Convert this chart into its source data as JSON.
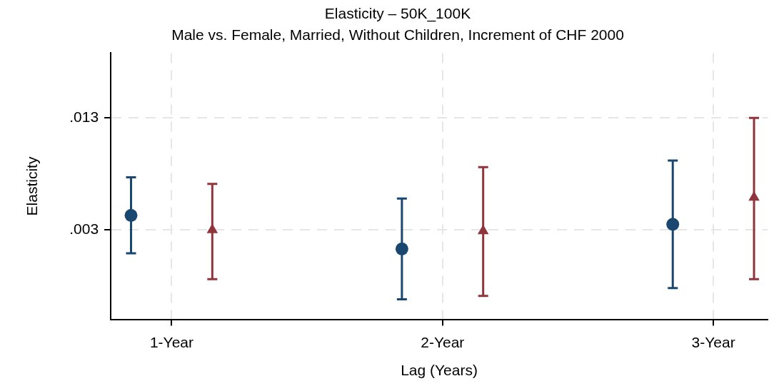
{
  "chart_data": {
    "type": "scatter",
    "title": "Elasticity – 50K_100K",
    "subtitle": "Male vs. Female, Married, Without Children, Increment of CHF 2000",
    "xlabel": "Lag (Years)",
    "ylabel": "Elasticity",
    "series": [
      {
        "color": "#1a476f",
        "marker": "circle",
        "x": [
          0.85,
          1.85,
          2.85
        ],
        "values": [
          0.0043,
          0.0013,
          0.0035
        ],
        "errors": [
          [
            0.0009,
            0.0077
          ],
          [
            -0.0032,
            0.0058
          ],
          [
            -0.0022,
            0.0092
          ]
        ]
      },
      {
        "color": "#90353b",
        "marker": "triangle",
        "x": [
          1.15,
          2.15,
          3.15
        ],
        "values": [
          0.003,
          0.0029,
          0.0059
        ],
        "errors": [
          [
            -0.0014,
            0.0071
          ],
          [
            -0.0029,
            0.0086
          ],
          [
            -0.0014,
            0.013
          ]
        ]
      }
    ],
    "xlim": [
      0.775,
      3.2
    ],
    "xticks": [
      {
        "value": 1,
        "label": "1-Year"
      },
      {
        "value": 2,
        "label": "2-Year"
      },
      {
        "value": 3,
        "label": "3-Year"
      }
    ],
    "ylim": [
      -0.005,
      0.0188
    ],
    "yticks": [
      {
        "value": 0.003,
        "label": ".003"
      },
      {
        "value": 0.013,
        "label": ".013"
      }
    ],
    "grid": true,
    "legend": false
  }
}
